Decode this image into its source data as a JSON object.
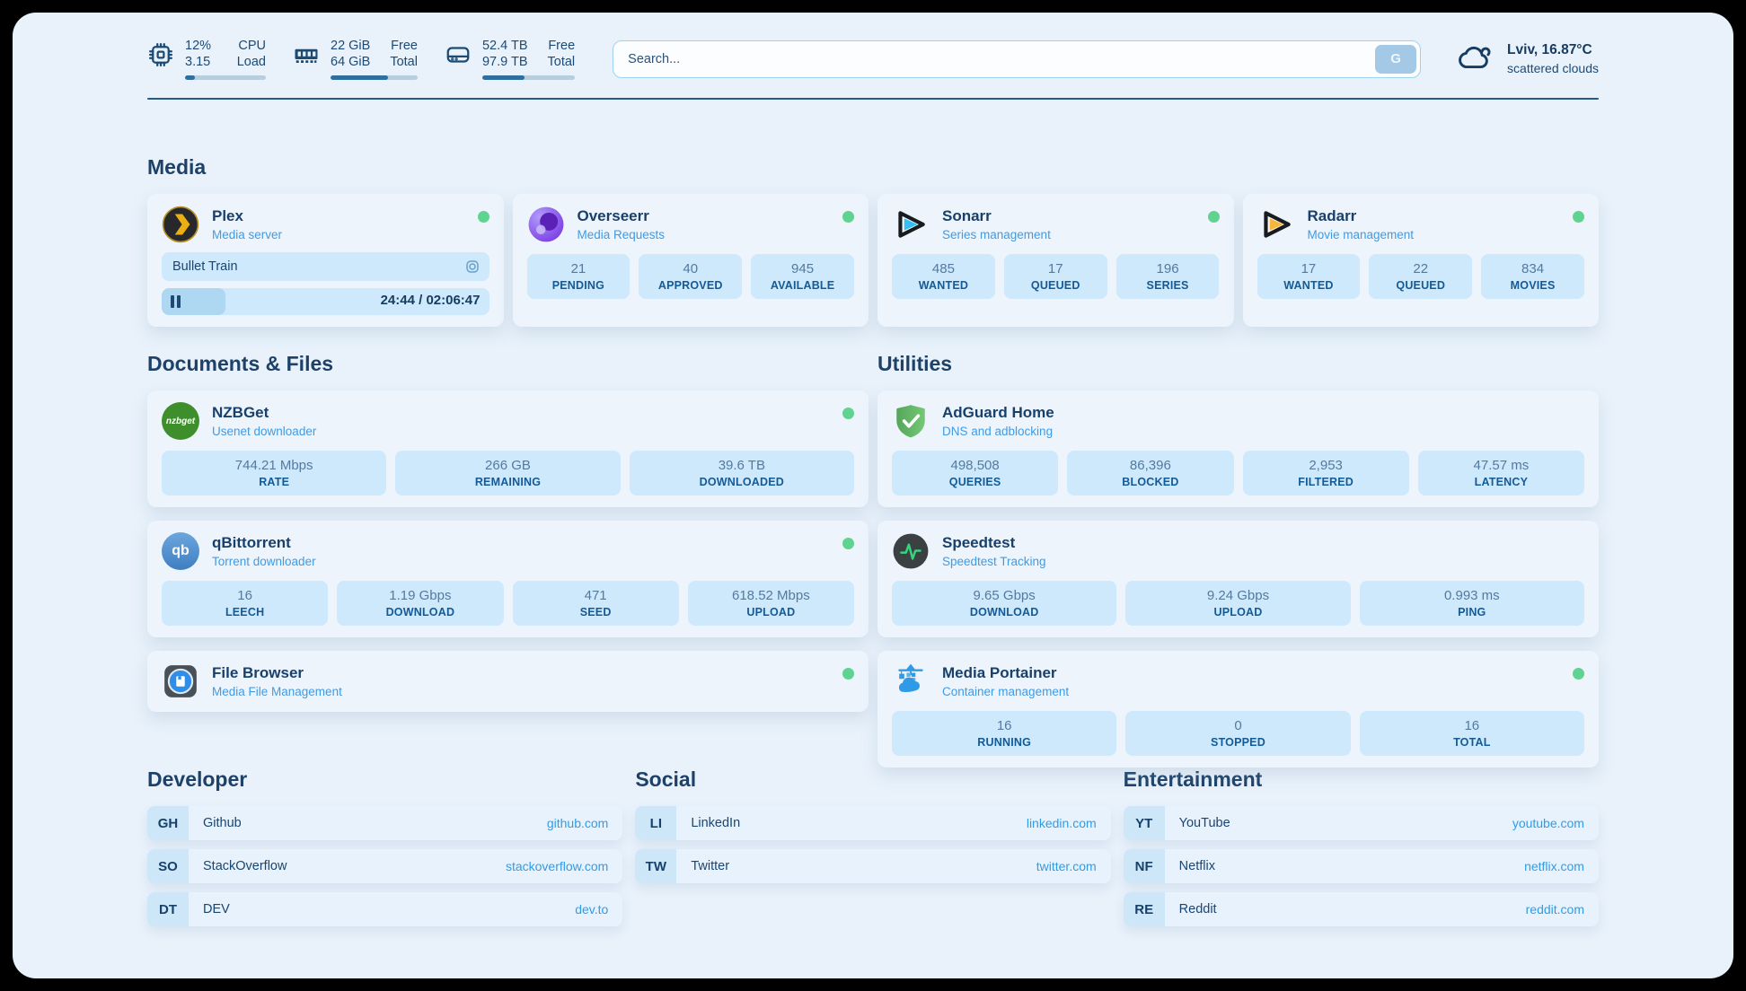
{
  "header": {
    "stats": [
      {
        "icon": "cpu-icon",
        "values": [
          "12%",
          "3.15"
        ],
        "labels": [
          "CPU",
          "Load"
        ],
        "progress": 12
      },
      {
        "icon": "ram-icon",
        "values": [
          "22 GiB",
          "64 GiB"
        ],
        "labels": [
          "Free",
          "Total"
        ],
        "progress": 66
      },
      {
        "icon": "disk-icon",
        "values": [
          "52.4 TB",
          "97.9 TB"
        ],
        "labels": [
          "Free",
          "Total"
        ],
        "progress": 46
      }
    ],
    "search": {
      "placeholder": "Search...",
      "button": "G"
    },
    "weather": {
      "main": "Lviv, 16.87°C",
      "sub": "scattered clouds"
    }
  },
  "sections": {
    "media": {
      "title": "Media",
      "plex": {
        "title": "Plex",
        "subtitle": "Media server",
        "status": "online",
        "now_playing": "Bullet Train",
        "time": "24:44 / 02:06:47",
        "progress": 19.5
      },
      "overseerr": {
        "title": "Overseerr",
        "subtitle": "Media Requests",
        "status": "online",
        "stats": [
          {
            "value": "21",
            "label": "PENDING"
          },
          {
            "value": "40",
            "label": "APPROVED"
          },
          {
            "value": "945",
            "label": "AVAILABLE"
          }
        ]
      },
      "sonarr": {
        "title": "Sonarr",
        "subtitle": "Series management",
        "status": "online",
        "stats": [
          {
            "value": "485",
            "label": "WANTED"
          },
          {
            "value": "17",
            "label": "QUEUED"
          },
          {
            "value": "196",
            "label": "SERIES"
          }
        ]
      },
      "radarr": {
        "title": "Radarr",
        "subtitle": "Movie management",
        "status": "online",
        "stats": [
          {
            "value": "17",
            "label": "WANTED"
          },
          {
            "value": "22",
            "label": "QUEUED"
          },
          {
            "value": "834",
            "label": "MOVIES"
          }
        ]
      }
    },
    "documents": {
      "title": "Documents & Files",
      "nzbget": {
        "title": "NZBGet",
        "subtitle": "Usenet downloader",
        "status": "online",
        "icon_text": "nzbget",
        "stats": [
          {
            "value": "744.21 Mbps",
            "label": "RATE"
          },
          {
            "value": "266 GB",
            "label": "REMAINING"
          },
          {
            "value": "39.6 TB",
            "label": "DOWNLOADED"
          }
        ]
      },
      "qbittorrent": {
        "title": "qBittorrent",
        "subtitle": "Torrent downloader",
        "status": "online",
        "icon_text": "qb",
        "stats": [
          {
            "value": "16",
            "label": "LEECH"
          },
          {
            "value": "1.19 Gbps",
            "label": "DOWNLOAD"
          },
          {
            "value": "471",
            "label": "SEED"
          },
          {
            "value": "618.52 Mbps",
            "label": "UPLOAD"
          }
        ]
      },
      "filebrowser": {
        "title": "File Browser",
        "subtitle": "Media File Management",
        "status": "online"
      }
    },
    "utilities": {
      "title": "Utilities",
      "adguard": {
        "title": "AdGuard Home",
        "subtitle": "DNS and adblocking",
        "stats": [
          {
            "value": "498,508",
            "label": "QUERIES"
          },
          {
            "value": "86,396",
            "label": "BLOCKED"
          },
          {
            "value": "2,953",
            "label": "FILTERED"
          },
          {
            "value": "47.57 ms",
            "label": "LATENCY"
          }
        ]
      },
      "speedtest": {
        "title": "Speedtest",
        "subtitle": "Speedtest Tracking",
        "stats": [
          {
            "value": "9.65 Gbps",
            "label": "DOWNLOAD"
          },
          {
            "value": "9.24 Gbps",
            "label": "UPLOAD"
          },
          {
            "value": "0.993 ms",
            "label": "PING"
          }
        ]
      },
      "portainer": {
        "title": "Media Portainer",
        "subtitle": "Container management",
        "status": "online",
        "stats": [
          {
            "value": "16",
            "label": "RUNNING"
          },
          {
            "value": "0",
            "label": "STOPPED"
          },
          {
            "value": "16",
            "label": "TOTAL"
          }
        ]
      }
    },
    "developer": {
      "title": "Developer",
      "links": [
        {
          "abbr": "GH",
          "name": "Github",
          "url": "github.com"
        },
        {
          "abbr": "SO",
          "name": "StackOverflow",
          "url": "stackoverflow.com"
        },
        {
          "abbr": "DT",
          "name": "DEV",
          "url": "dev.to"
        }
      ]
    },
    "social": {
      "title": "Social",
      "links": [
        {
          "abbr": "LI",
          "name": "LinkedIn",
          "url": "linkedin.com"
        },
        {
          "abbr": "TW",
          "name": "Twitter",
          "url": "twitter.com"
        }
      ]
    },
    "entertainment": {
      "title": "Entertainment",
      "links": [
        {
          "abbr": "YT",
          "name": "YouTube",
          "url": "youtube.com"
        },
        {
          "abbr": "NF",
          "name": "Netflix",
          "url": "netflix.com"
        },
        {
          "abbr": "RE",
          "name": "Reddit",
          "url": "reddit.com"
        }
      ]
    }
  },
  "colors": {
    "accent": "#2f6f9f",
    "status_online": "#5fd38f",
    "link": "#2f9ce8"
  }
}
